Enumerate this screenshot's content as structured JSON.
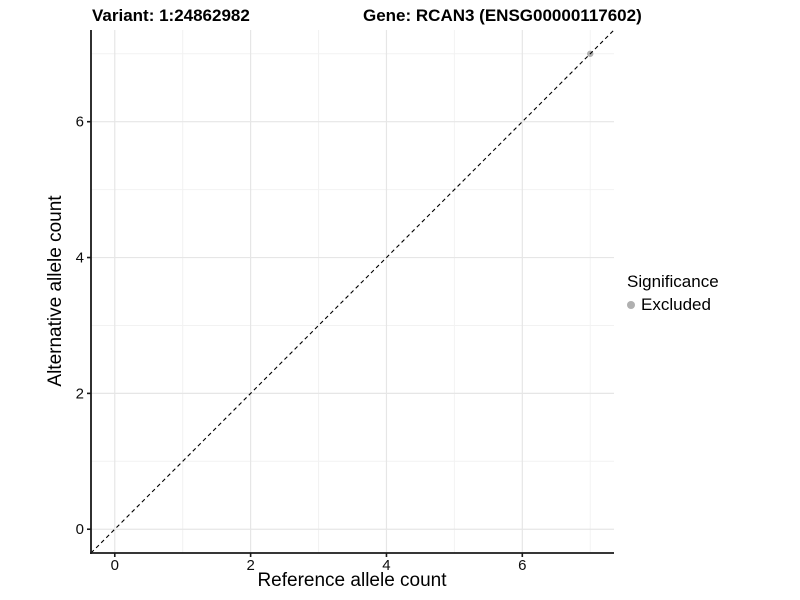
{
  "header": {
    "title_left": "Variant: 1:24862982",
    "title_right": "Gene: RCAN3 (ENSG00000117602)"
  },
  "chart_data": {
    "type": "scatter",
    "title": "Variant: 1:24862982 — Gene: RCAN3 (ENSG00000117602)",
    "xlabel": "Reference allele count",
    "ylabel": "Alternative allele count",
    "xlim": [
      -0.35,
      7.35
    ],
    "ylim": [
      -0.35,
      7.35
    ],
    "x_ticks": [
      0,
      2,
      4,
      6
    ],
    "y_ticks": [
      0,
      2,
      4,
      6
    ],
    "x_minor_ticks": [
      1,
      3,
      5,
      7
    ],
    "y_minor_ticks": [
      1,
      3,
      5,
      7
    ],
    "grid": "major+minor on white background",
    "series": [
      {
        "name": "Excluded",
        "color": "#b0b0b0",
        "points": [
          {
            "x": 7,
            "y": 7
          }
        ]
      }
    ],
    "reference_line": {
      "type": "identity",
      "slope": 1,
      "intercept": 0,
      "linetype": "dashed",
      "color": "#000000"
    },
    "legend": {
      "title": "Significance",
      "position": "right",
      "items": [
        {
          "label": "Excluded",
          "color": "#b0b0b0",
          "marker": "circle"
        }
      ]
    }
  },
  "colors": {
    "background": "#ffffff",
    "grid_major": "#e6e6e6",
    "grid_minor": "#f2f2f2",
    "axis_line": "#1a1a1a",
    "tick_text": "#0d0d0d",
    "excluded_point": "#b0b0b0"
  }
}
